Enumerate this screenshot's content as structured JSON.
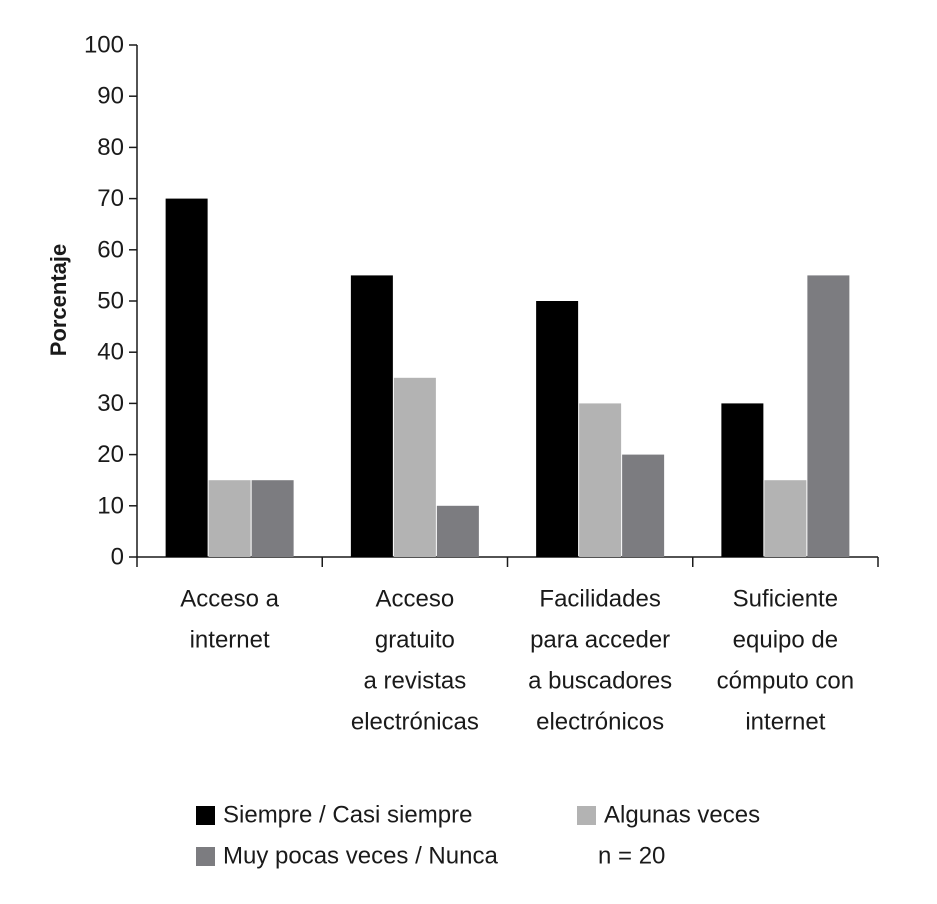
{
  "chart_data": {
    "type": "bar",
    "title": "",
    "xlabel": "",
    "ylabel": "Porcentaje",
    "ylim": [
      0,
      100
    ],
    "yticks": [
      0,
      10,
      20,
      30,
      40,
      50,
      60,
      70,
      80,
      90,
      100
    ],
    "grid": false,
    "legend_position": "bottom",
    "categories": [
      [
        "Acceso a",
        "internet"
      ],
      [
        "Acceso",
        "gratuito",
        "a revistas",
        "electrónicas"
      ],
      [
        "Facilidades",
        "para acceder",
        "a buscadores",
        "electrónicos"
      ],
      [
        "Suficiente",
        "equipo de",
        "cómputo con",
        "internet"
      ]
    ],
    "series": [
      {
        "name": "Siempre / Casi siempre",
        "color": "#000000",
        "values": [
          70,
          55,
          50,
          30
        ]
      },
      {
        "name": "Algunas veces",
        "color": "#b3b3b3",
        "values": [
          15,
          35,
          30,
          15
        ]
      },
      {
        "name": "Muy pocas veces / Nunca",
        "color": "#7c7c80",
        "values": [
          15,
          10,
          20,
          55
        ]
      }
    ],
    "note": "n = 20"
  }
}
